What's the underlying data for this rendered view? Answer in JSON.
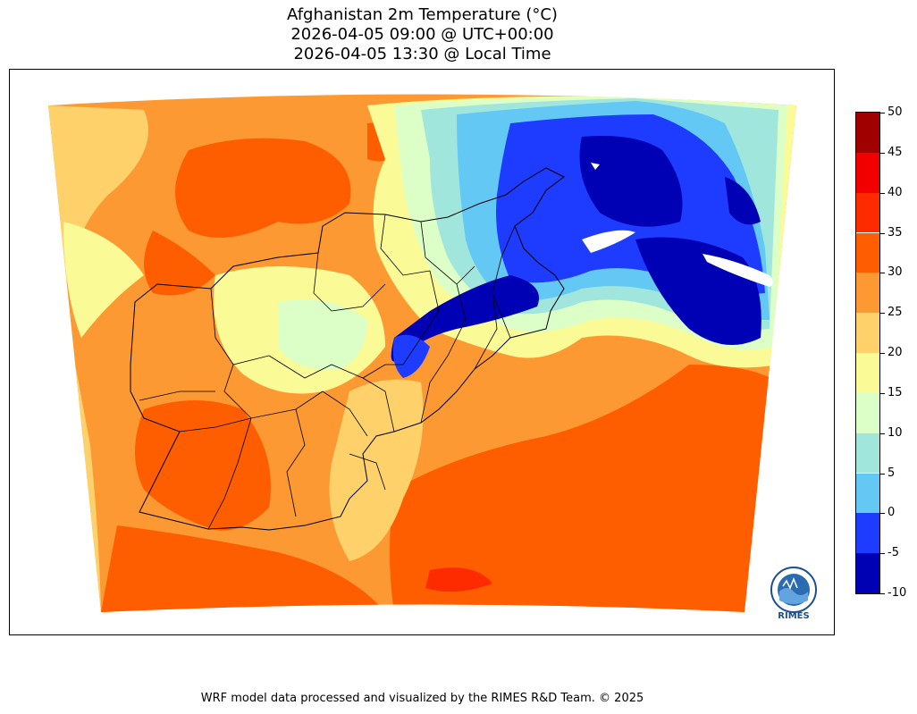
{
  "title": {
    "line1": "Afghanistan 2m Temperature (°C)",
    "line2": "2026-04-05 09:00 @ UTC+00:00",
    "line3": "2026-04-05 13:30 @ Local Time"
  },
  "colorbar": {
    "ticks": [
      "50",
      "45",
      "40",
      "35",
      "30",
      "25",
      "20",
      "15",
      "10",
      "5",
      "0",
      "-5",
      "-10"
    ],
    "levels": [
      {
        "from": -10,
        "to": -5,
        "color": "#0000b4"
      },
      {
        "from": -5,
        "to": 0,
        "color": "#1e3cff"
      },
      {
        "from": 0,
        "to": 5,
        "color": "#64c8f5"
      },
      {
        "from": 5,
        "to": 10,
        "color": "#a0e6dc"
      },
      {
        "from": 10,
        "to": 15,
        "color": "#dcffc8"
      },
      {
        "from": 15,
        "to": 20,
        "color": "#fafa96"
      },
      {
        "from": 20,
        "to": 25,
        "color": "#fed16a"
      },
      {
        "from": 25,
        "to": 30,
        "color": "#fd9933"
      },
      {
        "from": 30,
        "to": 35,
        "color": "#fe5e00"
      },
      {
        "from": 35,
        "to": 40,
        "color": "#fe2a00"
      },
      {
        "from": 40,
        "to": 45,
        "color": "#f20000"
      },
      {
        "from": 45,
        "to": 50,
        "color": "#a00000"
      }
    ]
  },
  "logo": {
    "text": "RIMES"
  },
  "footer": "WRF model data processed and visualized by the RIMES R&D Team. © 2025"
}
